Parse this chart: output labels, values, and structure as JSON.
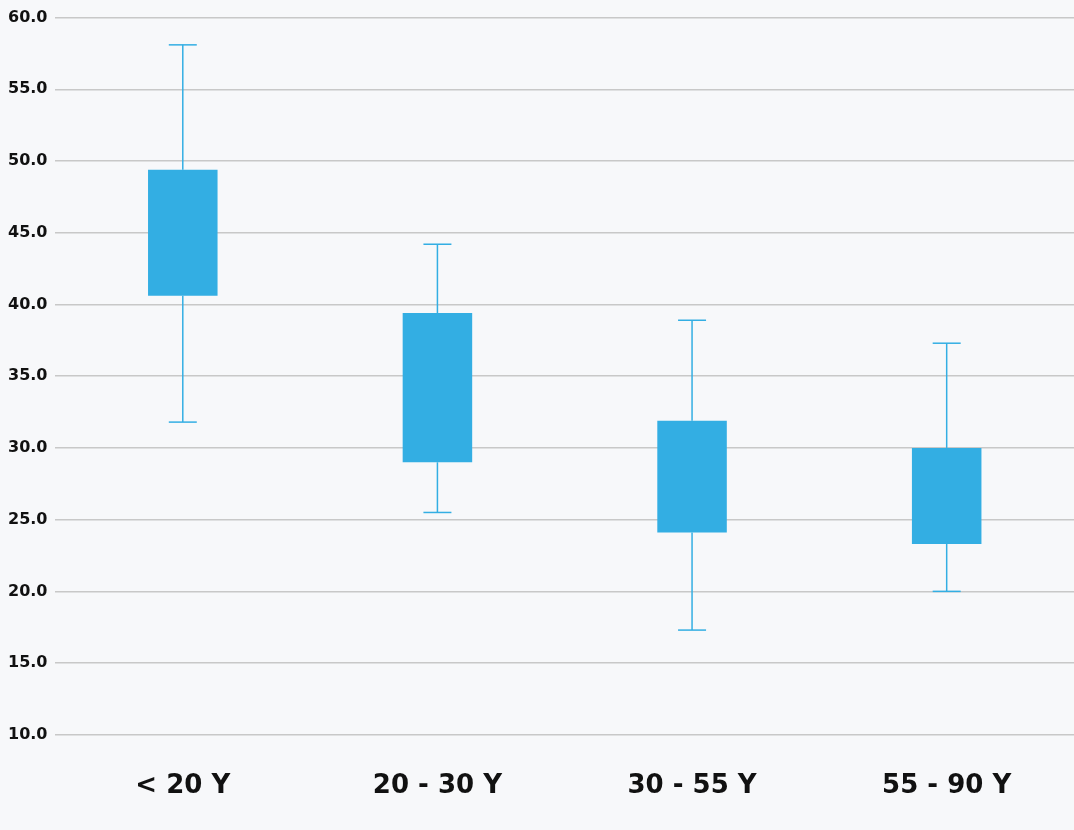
{
  "chart_data": {
    "type": "box",
    "categories": [
      "< 20 Y",
      "20 - 30 Y",
      "30 - 55 Y",
      "55 - 90 Y"
    ],
    "color": "#33aee3",
    "boxes": [
      {
        "low": 31.8,
        "q1": 40.6,
        "median": null,
        "q3": 49.4,
        "high": 58.1
      },
      {
        "low": 25.5,
        "q1": 29.0,
        "median": null,
        "q3": 39.4,
        "high": 44.2
      },
      {
        "low": 17.3,
        "q1": 24.1,
        "median": null,
        "q3": 31.9,
        "high": 38.9
      },
      {
        "low": 20.0,
        "q1": 23.3,
        "median": null,
        "q3": 30.0,
        "high": 37.3
      }
    ],
    "ylim": [
      10,
      60
    ],
    "yticks": [
      {
        "value": 10,
        "label": "10.0"
      },
      {
        "value": 15,
        "label": "15.0"
      },
      {
        "value": 20,
        "label": "20.0"
      },
      {
        "value": 25,
        "label": "25.0"
      },
      {
        "value": 30,
        "label": "30.0"
      },
      {
        "value": 35,
        "label": "35.0"
      },
      {
        "value": 40,
        "label": "40.0"
      },
      {
        "value": 45,
        "label": "45.0"
      },
      {
        "value": 50,
        "label": "50.0"
      },
      {
        "value": 55,
        "label": "55.0"
      },
      {
        "value": 60,
        "label": "60.0"
      }
    ],
    "grid": "y",
    "legend": false
  }
}
